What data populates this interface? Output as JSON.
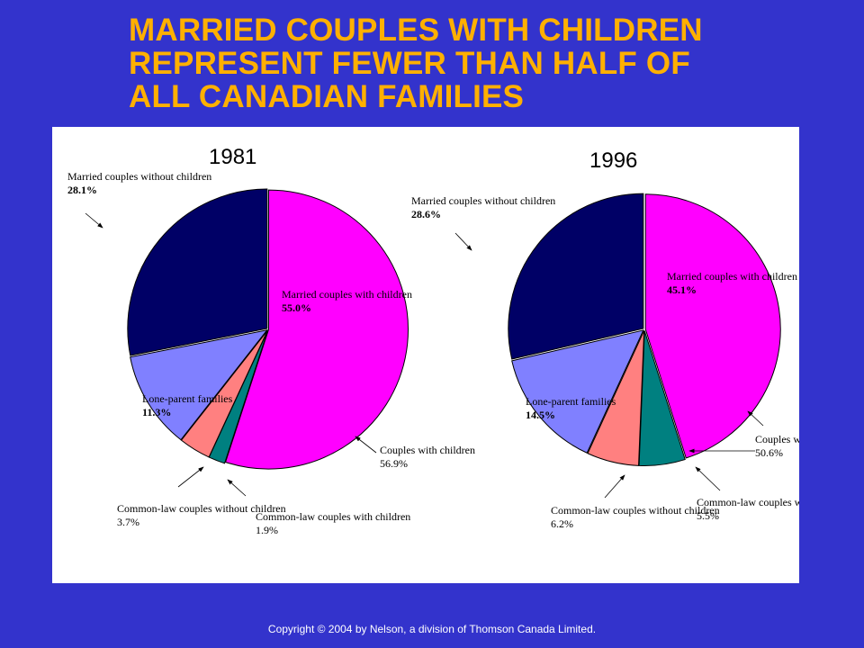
{
  "title_lines": [
    "MARRIED COUPLES WITH CHILDREN",
    "REPRESENT FEWER THAN HALF OF",
    "ALL CANADIAN FAMILIES"
  ],
  "copyright": "Copyright © 2004 by Nelson, a division of Thomson Canada Limited.",
  "colors": {
    "background": "#3333CC",
    "title": "#FFB000",
    "married_with_children": "#FF00FF",
    "married_without_children": "#000066",
    "lone_parent": "#8080FF",
    "common_law_without_children": "#FF8080",
    "common_law_with_children": "#008080"
  },
  "chart_data": [
    {
      "type": "pie",
      "title": "1981",
      "slices": [
        {
          "label": "Married couples with children",
          "value": 55.0,
          "value_text": "55.0%"
        },
        {
          "label": "Common-law couples with children",
          "value": 1.9,
          "value_text": "1.9%"
        },
        {
          "label": "Common-law couples without children",
          "value": 3.7,
          "value_text": "3.7%"
        },
        {
          "label": "Lone-parent families",
          "value": 11.3,
          "value_text": "11.3%"
        },
        {
          "label": "Married couples without children",
          "value": 28.1,
          "value_text": "28.1%"
        }
      ],
      "annotation": {
        "label": "Couples with children",
        "value": 56.9,
        "value_text": "56.9%"
      }
    },
    {
      "type": "pie",
      "title": "1996",
      "slices": [
        {
          "label": "Married couples with children",
          "value": 45.1,
          "value_text": "45.1%"
        },
        {
          "label": "Common-law couples with children",
          "value": 5.5,
          "value_text": "5.5%"
        },
        {
          "label": "Common-law couples without children",
          "value": 6.2,
          "value_text": "6.2%"
        },
        {
          "label": "Lone-parent families",
          "value": 14.5,
          "value_text": "14.5%"
        },
        {
          "label": "Married couples without children",
          "value": 28.6,
          "value_text": "28.6%"
        }
      ],
      "annotation": {
        "label": "Couples with children",
        "value": 50.6,
        "value_text": "50.6%"
      }
    }
  ]
}
